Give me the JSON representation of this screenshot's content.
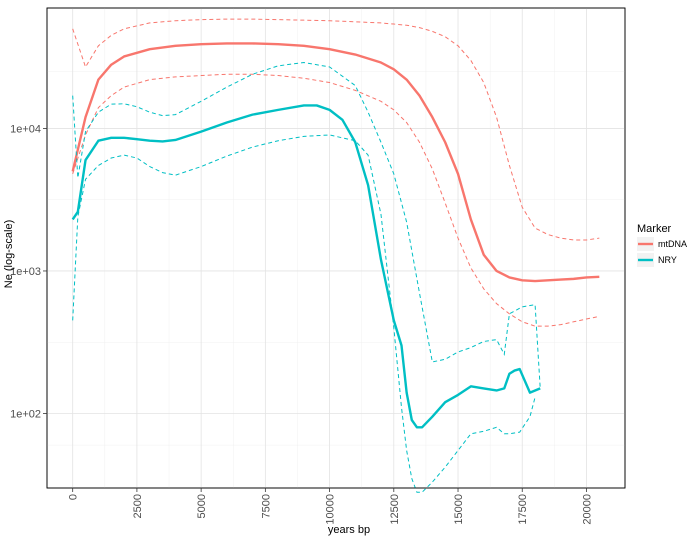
{
  "chart_data": {
    "type": "line",
    "xlabel": "years bp",
    "ylabel": "Ne (log-scale)",
    "xlim": [
      -1000,
      21500
    ],
    "ylim": [
      30,
      70000
    ],
    "yscale": "log",
    "x_ticks": [
      0,
      2500,
      5000,
      7500,
      10000,
      12500,
      15000,
      17500,
      20000
    ],
    "x_tick_labels": [
      "0",
      "2500",
      "5000",
      "7500",
      "10000",
      "12500",
      "15000",
      "17500",
      "20000"
    ],
    "y_ticks": [
      100,
      1000,
      10000
    ],
    "y_tick_labels": [
      "1e+02",
      "1e+03",
      "1e+04"
    ],
    "grid": true,
    "legend": {
      "title": "Marker",
      "position": "right",
      "entries": [
        {
          "label": "mtDNA",
          "color": "#F8766D"
        },
        {
          "label": "NRY",
          "color": "#00BFC4"
        }
      ]
    },
    "series": [
      {
        "name": "mtDNA",
        "color": "#F8766D",
        "median": {
          "x": [
            0,
            500,
            1000,
            1500,
            2000,
            3000,
            4000,
            5000,
            6000,
            7000,
            8000,
            9000,
            10000,
            11000,
            12000,
            12500,
            13000,
            13500,
            14000,
            14500,
            15000,
            15500,
            16000,
            16500,
            17000,
            17500,
            18000,
            18500,
            19000,
            19500,
            20000,
            20500
          ],
          "y": [
            5000,
            12000,
            22000,
            28000,
            32000,
            36000,
            38000,
            39000,
            39500,
            39500,
            39000,
            38000,
            36000,
            33000,
            29000,
            26000,
            22000,
            17000,
            12000,
            8000,
            4800,
            2300,
            1300,
            1000,
            900,
            860,
            850,
            860,
            870,
            880,
            900,
            910
          ]
        },
        "lower": {
          "x": [
            0,
            500,
            1000,
            1500,
            2000,
            3000,
            4000,
            5000,
            6000,
            7000,
            8000,
            9000,
            10000,
            11000,
            12000,
            12500,
            13000,
            13500,
            14000,
            14500,
            15000,
            15500,
            16000,
            16500,
            17000,
            17500,
            18000,
            18500,
            19000,
            19500,
            20000,
            20500
          ],
          "y": [
            4800,
            9000,
            14000,
            17000,
            19500,
            22000,
            23000,
            23500,
            24000,
            24000,
            23500,
            22500,
            21000,
            18500,
            15500,
            13500,
            11000,
            8000,
            5200,
            3000,
            1700,
            1050,
            750,
            590,
            500,
            440,
            410,
            410,
            420,
            440,
            460,
            480
          ]
        },
        "upper": {
          "x": [
            0,
            500,
            1000,
            1500,
            2000,
            3000,
            4000,
            5000,
            6000,
            7000,
            8000,
            9000,
            10000,
            11000,
            12000,
            12500,
            13000,
            13500,
            14000,
            14500,
            15000,
            15500,
            16000,
            16500,
            17000,
            17500,
            18000,
            18500,
            19000,
            19500,
            20000,
            20500
          ],
          "y": [
            50000,
            27000,
            38000,
            45000,
            50000,
            55000,
            57000,
            58000,
            58500,
            58500,
            58000,
            57500,
            57000,
            56000,
            55000,
            54000,
            53000,
            51000,
            48000,
            44000,
            38000,
            30000,
            21000,
            12000,
            5500,
            2800,
            2000,
            1800,
            1700,
            1650,
            1650,
            1700
          ]
        }
      },
      {
        "name": "NRY",
        "color": "#00BFC4",
        "median": {
          "x": [
            0,
            200,
            500,
            1000,
            1500,
            2000,
            2500,
            3000,
            3500,
            4000,
            5000,
            6000,
            7000,
            8000,
            9000,
            9500,
            10000,
            10500,
            11000,
            11500,
            12000,
            12500,
            12800,
            13000,
            13200,
            13400,
            13600,
            14000,
            14500,
            15000,
            15500,
            16000,
            16500,
            16800,
            17000,
            17200,
            17400,
            17800,
            18000,
            18200
          ],
          "y": [
            2300,
            2600,
            6000,
            8200,
            8600,
            8600,
            8400,
            8200,
            8100,
            8300,
            9500,
            11000,
            12500,
            13500,
            14500,
            14500,
            13500,
            11500,
            8000,
            4000,
            1200,
            450,
            300,
            140,
            90,
            80,
            80,
            95,
            120,
            135,
            155,
            150,
            145,
            150,
            190,
            200,
            205,
            140,
            145,
            150
          ]
        },
        "lower": {
          "x": [
            0,
            200,
            500,
            1000,
            1500,
            2000,
            2500,
            3000,
            3500,
            4000,
            5000,
            6000,
            7000,
            8000,
            9000,
            10000,
            11000,
            11500,
            12000,
            12500,
            12800,
            13000,
            13200,
            13400,
            13600,
            14000,
            14500,
            15000,
            15500,
            16000,
            16500,
            16800,
            17000,
            17400,
            17800,
            18000
          ],
          "y": [
            450,
            2400,
            4400,
            5500,
            6200,
            6500,
            6200,
            5400,
            4900,
            4700,
            5400,
            6400,
            7400,
            8200,
            8800,
            9000,
            8200,
            6500,
            2500,
            400,
            110,
            55,
            35,
            28,
            28,
            33,
            42,
            55,
            72,
            75,
            80,
            72,
            72,
            74,
            95,
            130
          ]
        },
        "upper": {
          "x": [
            0,
            200,
            500,
            1000,
            1500,
            2000,
            2500,
            3000,
            3500,
            4000,
            5000,
            6000,
            7000,
            8000,
            9000,
            10000,
            11000,
            11500,
            12000,
            12500,
            13000,
            13500,
            14000,
            14500,
            15000,
            15500,
            16000,
            16500,
            16800,
            17000,
            17500,
            18000,
            18200
          ],
          "y": [
            17000,
            4500,
            9500,
            13000,
            14800,
            14900,
            14200,
            13000,
            12300,
            12500,
            15500,
            19500,
            24000,
            27500,
            29000,
            27000,
            20000,
            13000,
            8000,
            4800,
            2200,
            700,
            230,
            240,
            270,
            290,
            320,
            330,
            260,
            500,
            560,
            580,
            150
          ]
        }
      }
    ]
  }
}
